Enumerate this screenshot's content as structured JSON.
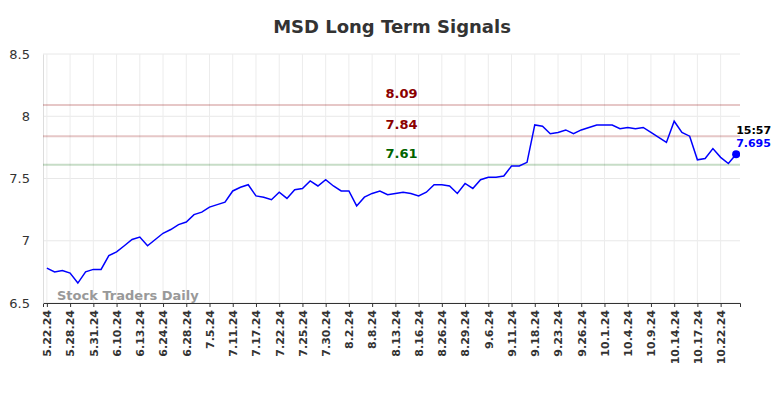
{
  "chart_data": {
    "type": "line",
    "title": "MSD Long Term Signals",
    "categories": [
      "5.22.24",
      null,
      null,
      "5.28.24",
      null,
      null,
      "5.31.24",
      null,
      null,
      "6.10.24",
      null,
      null,
      "6.13.24",
      null,
      null,
      "6.24.24",
      null,
      null,
      "6.28.24",
      null,
      null,
      "7.5.24",
      null,
      null,
      "7.11.24",
      null,
      null,
      "7.17.24",
      null,
      null,
      "7.22.24",
      null,
      null,
      "7.25.24",
      null,
      null,
      "7.30.24",
      null,
      null,
      "8.2.24",
      null,
      null,
      "8.8.24",
      null,
      null,
      "8.13.24",
      null,
      null,
      "8.16.24",
      null,
      null,
      "8.26.24",
      null,
      null,
      "8.29.24",
      null,
      null,
      "9.6.24",
      null,
      null,
      "9.11.24",
      null,
      null,
      "9.18.24",
      null,
      null,
      "9.23.24",
      null,
      null,
      "9.26.24",
      null,
      null,
      "10.1.24",
      null,
      null,
      "10.4.24",
      null,
      null,
      "10.9.24",
      null,
      null,
      "10.14.24",
      null,
      null,
      "10.17.24",
      null,
      null,
      "10.22.24",
      null,
      null
    ],
    "series": [
      {
        "color": "#0000ff",
        "marker": "end",
        "values": [
          6.78,
          6.75,
          6.76,
          6.74,
          6.66,
          6.75,
          6.77,
          6.77,
          6.88,
          6.91,
          6.96,
          7.01,
          7.03,
          6.96,
          7.01,
          7.06,
          7.09,
          7.13,
          7.15,
          7.21,
          7.23,
          7.27,
          7.29,
          7.31,
          7.4,
          7.43,
          7.45,
          7.36,
          7.35,
          7.33,
          7.39,
          7.34,
          7.41,
          7.42,
          7.48,
          7.44,
          7.49,
          7.44,
          7.4,
          7.4,
          7.28,
          7.35,
          7.38,
          7.4,
          7.37,
          7.38,
          7.39,
          7.38,
          7.36,
          7.39,
          7.45,
          7.45,
          7.44,
          7.38,
          7.46,
          7.42,
          7.49,
          7.51,
          7.51,
          7.52,
          7.6,
          7.6,
          7.63,
          7.93,
          7.92,
          7.86,
          7.87,
          7.89,
          7.86,
          7.89,
          7.91,
          7.93,
          7.93,
          7.93,
          7.9,
          7.91,
          7.9,
          7.91,
          7.87,
          7.83,
          7.79,
          7.96,
          7.87,
          7.84,
          7.65,
          7.66,
          7.74,
          7.67,
          7.62,
          7.695
        ]
      }
    ],
    "reference_lines": [
      {
        "value": 8.09,
        "color": "#8b0000"
      },
      {
        "value": 7.84,
        "color": "#8b0000"
      },
      {
        "value": 7.61,
        "color": "#006400"
      }
    ],
    "annotations": [
      {
        "text": "15:57"
      }
    ],
    "watermark": "Stock Traders Daily",
    "ylim": [
      6.5,
      8.5
    ],
    "yticks": [
      6.5,
      7,
      7.5,
      8,
      8.5
    ],
    "grid": true
  }
}
